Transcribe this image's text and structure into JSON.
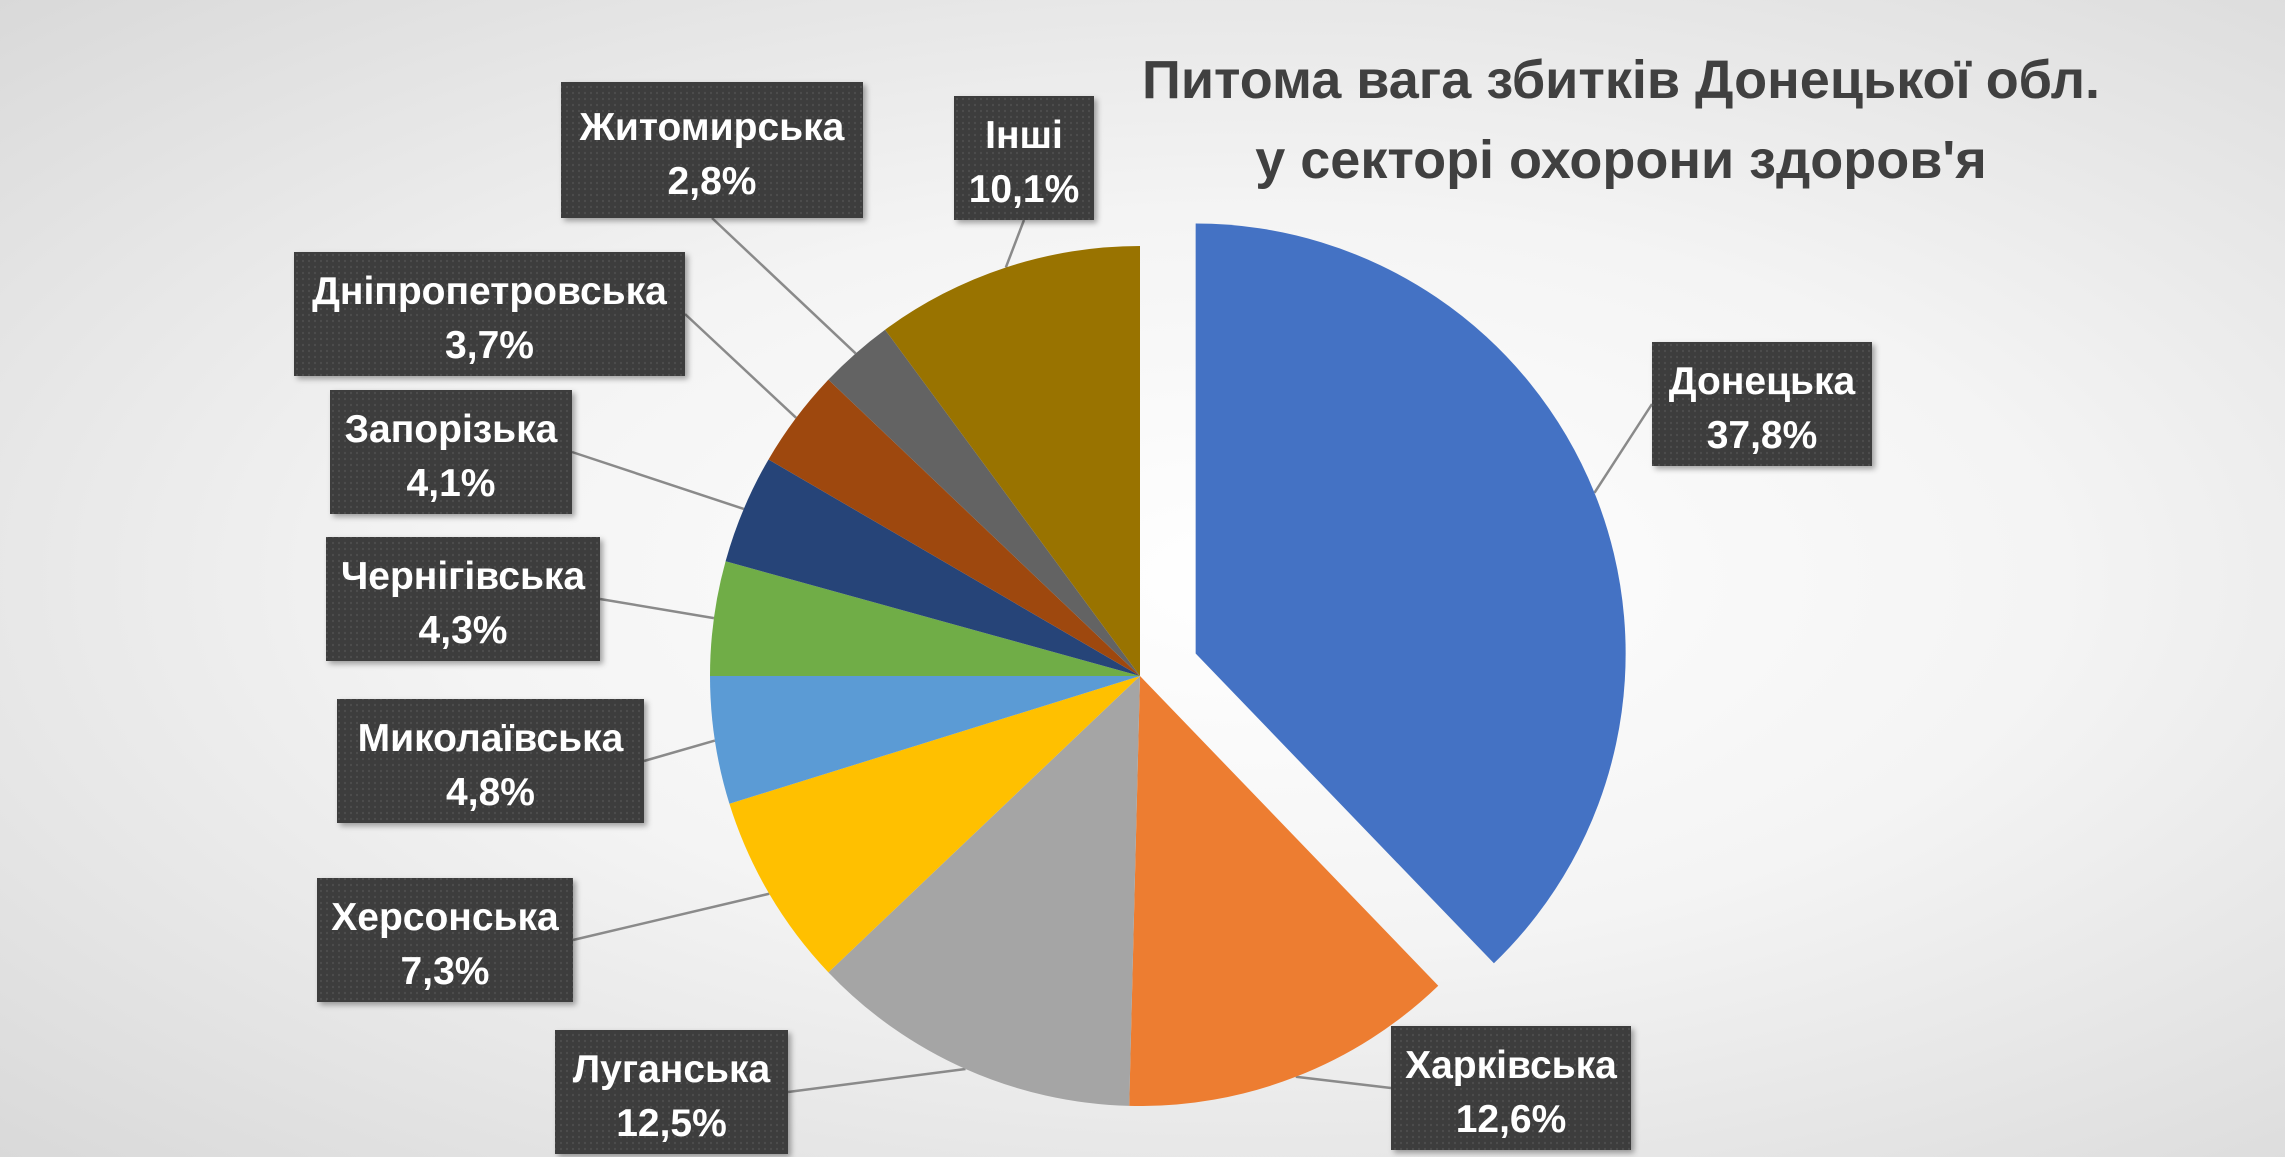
{
  "chart_data": {
    "type": "pie",
    "title_lines": [
      "Питома вага збитків Донецької обл.",
      "у секторі охорони здоров'я"
    ],
    "slices": [
      {
        "name": "Донецька",
        "value": 37.8,
        "value_label": "37,8%",
        "color": "#4472C4",
        "exploded": true
      },
      {
        "name": "Харківська",
        "value": 12.6,
        "value_label": "12,6%",
        "color": "#ED7D31"
      },
      {
        "name": "Луганська",
        "value": 12.5,
        "value_label": "12,5%",
        "color": "#A5A5A5"
      },
      {
        "name": "Херсонська",
        "value": 7.3,
        "value_label": "7,3%",
        "color": "#FFC000"
      },
      {
        "name": "Миколаївська",
        "value": 4.8,
        "value_label": "4,8%",
        "color": "#5B9BD5"
      },
      {
        "name": "Чернігівська",
        "value": 4.3,
        "value_label": "4,3%",
        "color": "#70AD47"
      },
      {
        "name": "Запорізька",
        "value": 4.1,
        "value_label": "4,1%",
        "color": "#264478"
      },
      {
        "name": "Дніпропетровська",
        "value": 3.7,
        "value_label": "3,7%",
        "color": "#9E480E"
      },
      {
        "name": "Житомирська",
        "value": 2.8,
        "value_label": "2,8%",
        "color": "#636363"
      },
      {
        "name": "Інші",
        "value": 10.1,
        "value_label": "10,1%",
        "color": "#997300"
      }
    ],
    "legend": "none",
    "label_box_color": "#404040"
  }
}
